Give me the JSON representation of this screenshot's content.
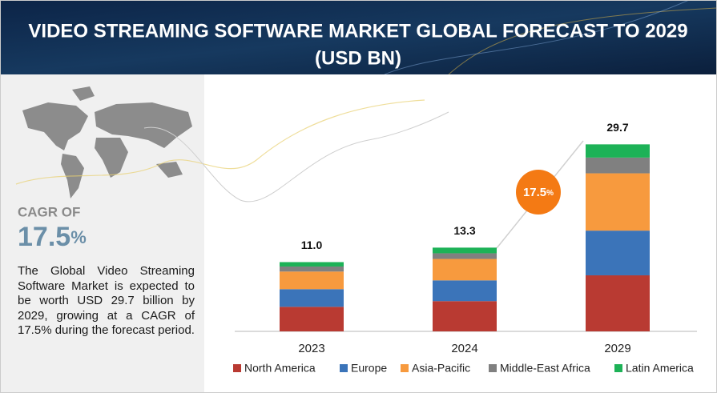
{
  "header": {
    "title_lines": [
      "VIDEO STREAMING SOFTWARE MARKET GLOBAL FORECAST TO 2029",
      "(USD BN)"
    ]
  },
  "side_panel": {
    "cagr_label": "CAGR OF",
    "cagr_value": "17.5",
    "cagr_unit": "%",
    "description": "The Global Video Streaming Software Market is expected to be worth USD 29.7 billion by 2029, growing at a CAGR of 17.5% during the forecast period."
  },
  "chart_data": {
    "type": "stacked_bar",
    "categories": [
      "2023",
      "2024",
      "2029"
    ],
    "series": [
      {
        "name": "North America",
        "color": "#b93a32",
        "values": [
          3.9,
          4.8,
          8.9
        ]
      },
      {
        "name": "Europe",
        "color": "#3b74b9",
        "values": [
          2.8,
          3.3,
          7.1
        ]
      },
      {
        "name": "Asia-Pacific",
        "color": "#f79a3e",
        "values": [
          2.8,
          3.4,
          9.1
        ]
      },
      {
        "name": "Middle-East Africa",
        "color": "#808080",
        "values": [
          0.8,
          0.9,
          2.5
        ]
      },
      {
        "name": "Latin America",
        "color": "#1db257",
        "values": [
          0.7,
          0.9,
          2.1
        ]
      }
    ],
    "totals": {
      "values": [
        11,
        13.3,
        29.7
      ],
      "value_labels": [
        "11.0",
        "13.3",
        "29.7"
      ]
    },
    "ylim": [
      0,
      30
    ],
    "annotation": {
      "value": "17.5",
      "unit": "%"
    }
  }
}
